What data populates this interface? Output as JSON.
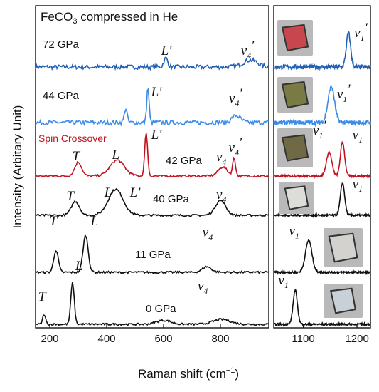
{
  "chart_data": [
    {
      "type": "line",
      "panel": "left",
      "title": "FeCO",
      "title_sub": "3",
      "title_rest": " compressed in He",
      "xlabel": "Raman shift (cm",
      "xlabel_sup": "−1",
      "xlabel_close": ")",
      "ylabel": "Intensity (Arbitary Unit)",
      "xlim": [
        150,
        970
      ],
      "xticks": [
        200,
        400,
        600,
        800
      ],
      "xtick_labels": [
        "200",
        "400",
        "600",
        "800"
      ],
      "grid": false,
      "series": [
        {
          "name": "72 GPa",
          "color": "#1f5fb4",
          "peaks": [
            [
              608,
              0.45,
              7
            ],
            [
              905,
              0.35,
              25
            ]
          ],
          "labels": [
            {
              "text": "L'",
              "italic": true,
              "x": 610,
              "dy": 17
            },
            {
              "text": "ν4'",
              "italic": true,
              "x": 895,
              "dy": 17
            }
          ]
        },
        {
          "name": "44 GPa",
          "color": "#3c8be6",
          "peaks": [
            [
              467,
              0.7,
              5
            ],
            [
              545,
              1.8,
              4
            ],
            [
              855,
              0.35,
              15
            ]
          ],
          "labels": [
            {
              "text": "L'",
              "italic": true,
              "x": 575,
              "dy": 37
            },
            {
              "text": "ν4'",
              "italic": true,
              "x": 853,
              "dy": 28
            }
          ]
        },
        {
          "name": "42 GPa",
          "color": "#c1121f",
          "note": "Spin Crossover",
          "note_color": "#c1121f",
          "peaks": [
            [
              300,
              0.7,
              12
            ],
            [
              437,
              0.8,
              25
            ],
            [
              539,
              2.2,
              5
            ],
            [
              808,
              0.45,
              16
            ],
            [
              848,
              0.9,
              5
            ]
          ],
          "labels": [
            {
              "text": "T",
              "italic": true,
              "x": 292,
              "dy": 22
            },
            {
              "text": "L",
              "italic": true,
              "x": 432,
              "dy": 24
            },
            {
              "text": "L'",
              "italic": true,
              "x": 575,
              "dy": 52
            },
            {
              "text": "ν4",
              "italic": true,
              "x": 803,
              "dy": 21
            },
            {
              "text": "ν4'",
              "italic": true,
              "x": 852,
              "dy": 34
            }
          ]
        },
        {
          "name": "40 GPa",
          "color": "#111111",
          "peaks": [
            [
              290,
              0.7,
              14
            ],
            [
              432,
              1.3,
              26
            ],
            [
              800,
              0.75,
              18
            ]
          ],
          "labels": [
            {
              "text": "T",
              "italic": true,
              "x": 272,
              "dy": 21
            },
            {
              "text": "L",
              "italic": true,
              "x": 405,
              "dy": 26
            },
            {
              "text": "L'",
              "italic": true,
              "x": 500,
              "dy": 26
            },
            {
              "text": "ν4",
              "italic": true,
              "x": 803,
              "dy": 23
            }
          ]
        },
        {
          "name": "11 GPa",
          "color": "#111111",
          "peaks": [
            [
              222,
              1.1,
              8
            ],
            [
              326,
              1.85,
              9
            ],
            [
              752,
              0.28,
              16
            ]
          ],
          "labels": [
            {
              "text": "T",
              "italic": true,
              "x": 212,
              "dy": 66
            },
            {
              "text": "L",
              "italic": true,
              "x": 357,
              "dy": 66
            },
            {
              "text": "ν4",
              "italic": true,
              "x": 755,
              "dy": 50
            }
          ]
        },
        {
          "name": "0 GPa",
          "color": "#111111",
          "peaks": [
            [
              180,
              0.5,
              5
            ],
            [
              280,
              2.1,
              6
            ],
            [
              600,
              0.2,
              25
            ],
            [
              805,
              0.25,
              30
            ]
          ],
          "labels": [
            {
              "text": "T",
              "italic": true,
              "x": 173,
              "dy": 33
            },
            {
              "text": "L",
              "italic": true,
              "x": 303,
              "dy": 76
            },
            {
              "text": "ν4",
              "italic": true,
              "x": 738,
              "dy": 48
            }
          ]
        }
      ]
    },
    {
      "type": "line",
      "panel": "right",
      "xlim": [
        1045,
        1225
      ],
      "xticks": [
        1100,
        1200
      ],
      "xtick_labels": [
        "1100",
        "1200"
      ],
      "grid": false,
      "series": [
        {
          "ref": "72 GPa",
          "color": "#1f5fb4",
          "peaks": [
            [
              1184,
              1.7,
              4
            ]
          ],
          "labels": [
            {
              "text": "ν1'",
              "italic": true,
              "x": 1207,
              "dy": 42
            }
          ]
        },
        {
          "ref": "44 GPa",
          "color": "#3c8be6",
          "peaks": [
            [
              1152,
              1.8,
              6
            ]
          ],
          "labels": [
            {
              "text": "ν1'",
              "italic": true,
              "x": 1175,
              "dy": 34
            }
          ]
        },
        {
          "ref": "42 GPa",
          "color": "#c1121f",
          "peaks": [
            [
              1148,
              1.2,
              5
            ],
            [
              1173,
              1.7,
              4
            ]
          ],
          "labels": [
            {
              "text": "ν1'",
              "italic": true,
              "x": 1130,
              "dy": 58
            },
            {
              "text": "ν1",
              "italic": true,
              "x": 1201,
              "dy": 52
            }
          ]
        },
        {
          "ref": "40 GPa",
          "color": "#111111",
          "peaks": [
            [
              1173,
              1.6,
              4
            ]
          ],
          "labels": [
            {
              "text": "ν1",
              "italic": true,
              "x": 1201,
              "dy": 38
            }
          ]
        },
        {
          "ref": "11 GPa",
          "color": "#111111",
          "peaks": [
            [
              1110,
              1.6,
              6
            ]
          ],
          "labels": [
            {
              "text": "ν1",
              "italic": true,
              "x": 1083,
              "dy": 52
            }
          ]
        },
        {
          "ref": "0 GPa",
          "color": "#111111",
          "peaks": [
            [
              1085,
              1.7,
              4
            ]
          ],
          "labels": [
            {
              "text": "ν1",
              "italic": true,
              "x": 1063,
              "dy": 56
            }
          ]
        }
      ]
    }
  ],
  "micrographs": [
    {
      "ref": "72 GPa",
      "color": "#c8474f"
    },
    {
      "ref": "44 GPa",
      "color": "#7a7a45"
    },
    {
      "ref": "42 GPa",
      "color": "#6f6a45"
    },
    {
      "ref": "40 GPa",
      "color": "#dcdcd8"
    },
    {
      "ref": "11 GPa",
      "color": "#d4d2cf"
    },
    {
      "ref": "0 GPa",
      "color": "#c9d1d8"
    }
  ]
}
